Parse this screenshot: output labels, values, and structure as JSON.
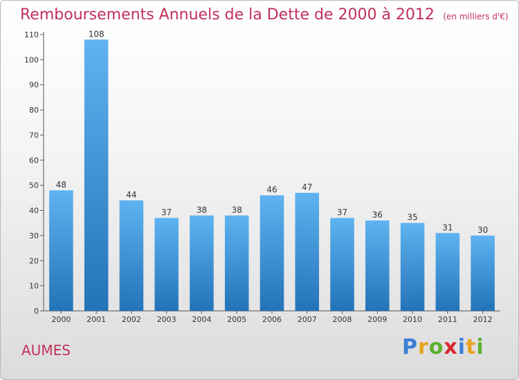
{
  "title": "Remboursements Annuels de la Dette de 2000 à 2012",
  "unit": "(en milliers d'€)",
  "commune": "AUMES",
  "brand": {
    "text": "Proxiti",
    "letters": [
      "P",
      "r",
      "o",
      "x",
      "i",
      "t",
      "i"
    ],
    "letter_colors": [
      "#3a7fd5",
      "#e8a21c",
      "#5cb030",
      "#d8262f",
      "#3a7fd5",
      "#e8a21c",
      "#5cb030"
    ]
  },
  "colors": {
    "bar_light": "#5fb3f0",
    "bar_dark": "#2373b8",
    "text": "#333333",
    "accent": "#c0305a"
  },
  "chart_data": {
    "type": "bar",
    "title": "Remboursements Annuels de la Dette de 2000 à 2012",
    "unit": "(en milliers d'€)",
    "categories": [
      "2000",
      "2001",
      "2002",
      "2003",
      "2004",
      "2005",
      "2006",
      "2007",
      "2008",
      "2009",
      "2010",
      "2011",
      "2012"
    ],
    "values": [
      48,
      108,
      44,
      37,
      38,
      38,
      46,
      47,
      37,
      36,
      35,
      31,
      30
    ],
    "ylim": [
      0,
      110
    ],
    "yticks": [
      0,
      10,
      20,
      30,
      40,
      50,
      60,
      70,
      80,
      90,
      100,
      110
    ],
    "grid": false,
    "xlabel": "",
    "ylabel": ""
  }
}
